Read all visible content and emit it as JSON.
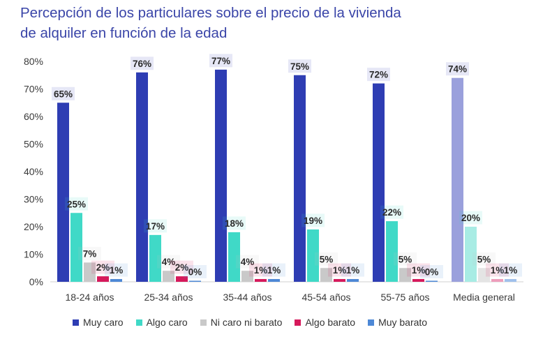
{
  "chart_data": {
    "type": "bar",
    "title": "Percepción de los particulares sobre el precio de la vivienda de alquiler en función de la edad",
    "categories": [
      "18-24 años",
      "25-34 años",
      "35-44 años",
      "45-54 años",
      "55-75 años",
      "Media general"
    ],
    "ylim": [
      0,
      80
    ],
    "yticks": [
      "0%",
      "10%",
      "20%",
      "30%",
      "40%",
      "50%",
      "60%",
      "70%",
      "80%"
    ],
    "series": [
      {
        "name": "Muy caro",
        "color": "#2e3db3",
        "values": [
          65,
          76,
          77,
          75,
          72,
          74
        ],
        "labels": [
          "65%",
          "76%",
          "77%",
          "75%",
          "72%",
          "74%"
        ]
      },
      {
        "name": "Algo caro",
        "color": "#40d9c7",
        "values": [
          25,
          17,
          18,
          19,
          22,
          20
        ],
        "labels": [
          "25%",
          "17%",
          "18%",
          "19%",
          "22%",
          "20%"
        ]
      },
      {
        "name": "Ni caro ni barato",
        "color": "#c9c9c9",
        "values": [
          7,
          4,
          4,
          5,
          5,
          5
        ],
        "labels": [
          "7%",
          "4%",
          "4%",
          "5%",
          "5%",
          "5%"
        ]
      },
      {
        "name": "Algo barato",
        "color": "#d6195b",
        "values": [
          2,
          2,
          1,
          1,
          1,
          1
        ],
        "labels": [
          "2%",
          "2%",
          "1%",
          "1%",
          "1%",
          "1%"
        ]
      },
      {
        "name": "Muy barato",
        "color": "#4d88d6",
        "values": [
          1,
          0,
          1,
          1,
          0,
          1
        ],
        "labels": [
          "1%",
          "0%",
          "1%",
          "1%",
          "0%",
          "1%"
        ]
      }
    ],
    "highlight_colors": [
      "#9aa0dc",
      "#a8ece4",
      "#e4e4e4",
      "#ee9dbb",
      "#9fc0ec"
    ],
    "legend_position": "bottom"
  }
}
